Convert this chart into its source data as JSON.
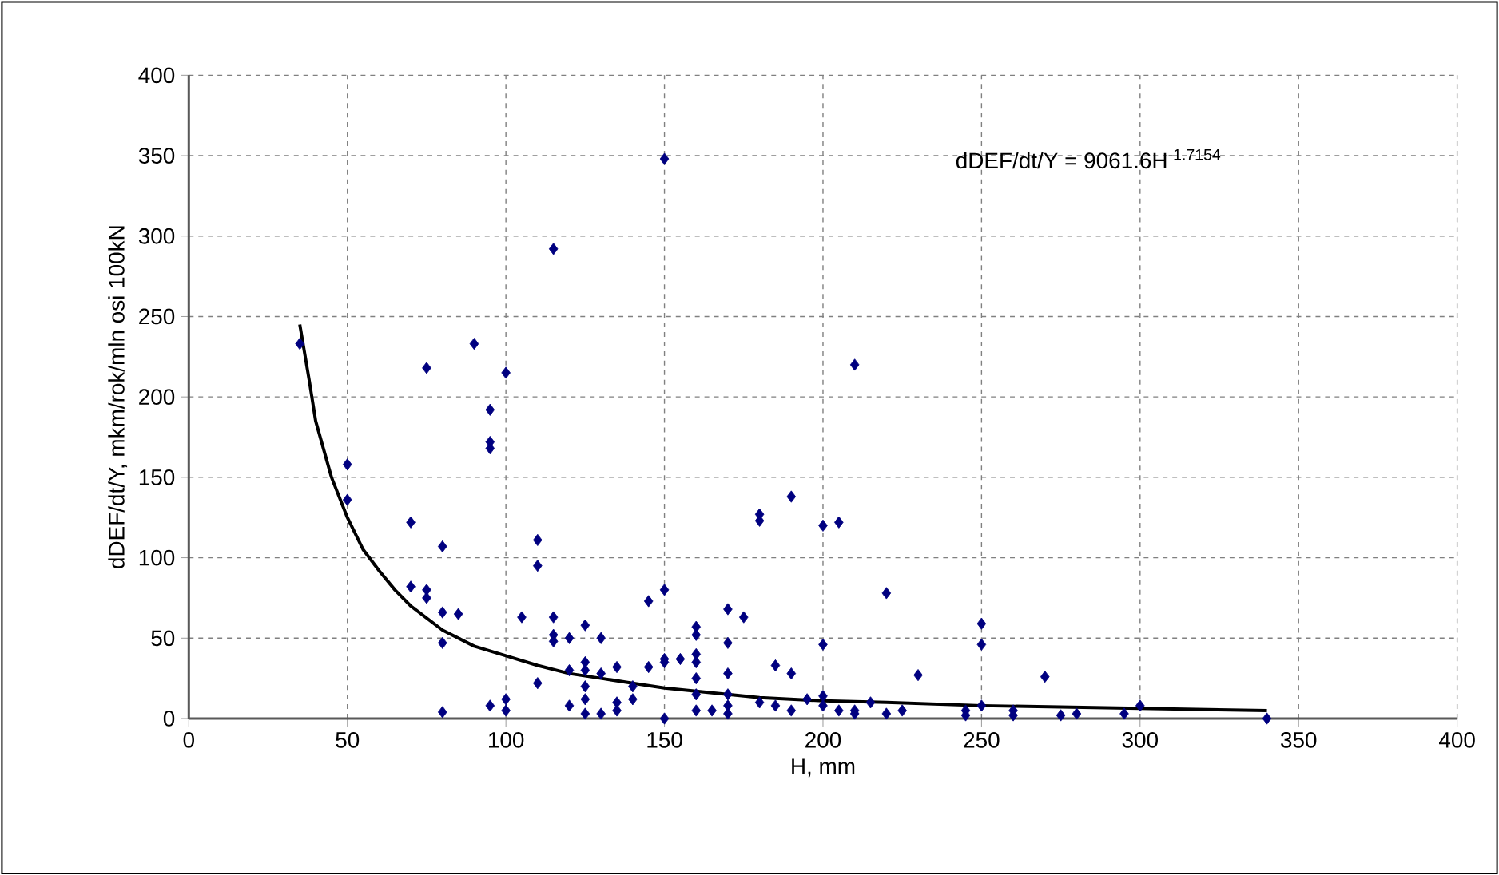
{
  "chart_data": {
    "type": "scatter",
    "xlabel": "H, mm",
    "ylabel": "dDEF/dt/Y, mkm/rok/mln osi 100kN",
    "xlim": [
      0,
      400
    ],
    "ylim": [
      0,
      400
    ],
    "xticks": [
      0,
      50,
      100,
      150,
      200,
      250,
      300,
      350,
      400
    ],
    "yticks": [
      0,
      50,
      100,
      150,
      200,
      250,
      300,
      350,
      400
    ],
    "grid": true,
    "marker": "diamond",
    "annotations": [
      "dDEF/dt/Y = 9061.6H$^{-1.7154}$"
    ],
    "series": [
      {
        "color": "#000080",
        "x": [
          35,
          50,
          50,
          70,
          70,
          75,
          75,
          75,
          80,
          80,
          80,
          80,
          85,
          90,
          95,
          95,
          95,
          95,
          100,
          100,
          100,
          105,
          110,
          110,
          110,
          115,
          115,
          115,
          115,
          120,
          120,
          120,
          125,
          125,
          125,
          125,
          125,
          125,
          130,
          130,
          130,
          135,
          135,
          135,
          140,
          140,
          145,
          145,
          150,
          150,
          150,
          150,
          150,
          155,
          160,
          160,
          160,
          160,
          160,
          160,
          160,
          165,
          170,
          170,
          170,
          170,
          170,
          170,
          175,
          180,
          180,
          180,
          185,
          185,
          190,
          190,
          190,
          195,
          200,
          200,
          200,
          200,
          205,
          205,
          210,
          210,
          210,
          215,
          220,
          220,
          225,
          230,
          245,
          245,
          250,
          250,
          250,
          260,
          260,
          270,
          275,
          280,
          295,
          300,
          340
        ],
        "values": [
          233,
          158,
          136,
          122,
          82,
          218,
          80,
          75,
          107,
          66,
          47,
          4,
          65,
          233,
          192,
          172,
          168,
          8,
          215,
          12,
          5,
          63,
          111,
          95,
          22,
          292,
          63,
          52,
          48,
          50,
          30,
          8,
          58,
          35,
          30,
          20,
          12,
          3,
          50,
          28,
          3,
          32,
          10,
          5,
          20,
          12,
          73,
          32,
          348,
          80,
          37,
          35,
          0,
          37,
          57,
          52,
          40,
          35,
          25,
          15,
          5,
          5,
          68,
          47,
          28,
          15,
          8,
          3,
          63,
          127,
          123,
          10,
          33,
          8,
          138,
          28,
          5,
          12,
          120,
          46,
          14,
          8,
          122,
          5,
          220,
          5,
          3,
          10,
          78,
          3,
          5,
          27,
          5,
          2,
          59,
          46,
          8,
          5,
          2,
          26,
          2,
          3,
          3,
          8,
          0
        ]
      },
      {
        "type": "line",
        "color": "#000000",
        "marker": "none",
        "x": [
          35,
          38,
          40,
          45,
          50,
          55,
          60,
          65,
          70,
          80,
          90,
          100,
          110,
          120,
          130,
          140,
          150,
          160,
          170,
          180,
          200,
          220,
          250,
          280,
          310,
          340
        ],
        "values": [
          245,
          210,
          185,
          150,
          125,
          105,
          92,
          80,
          70,
          55,
          45,
          39,
          33,
          28,
          25,
          22,
          19,
          17,
          15,
          13,
          11,
          10,
          8,
          7,
          6,
          5
        ]
      }
    ]
  }
}
